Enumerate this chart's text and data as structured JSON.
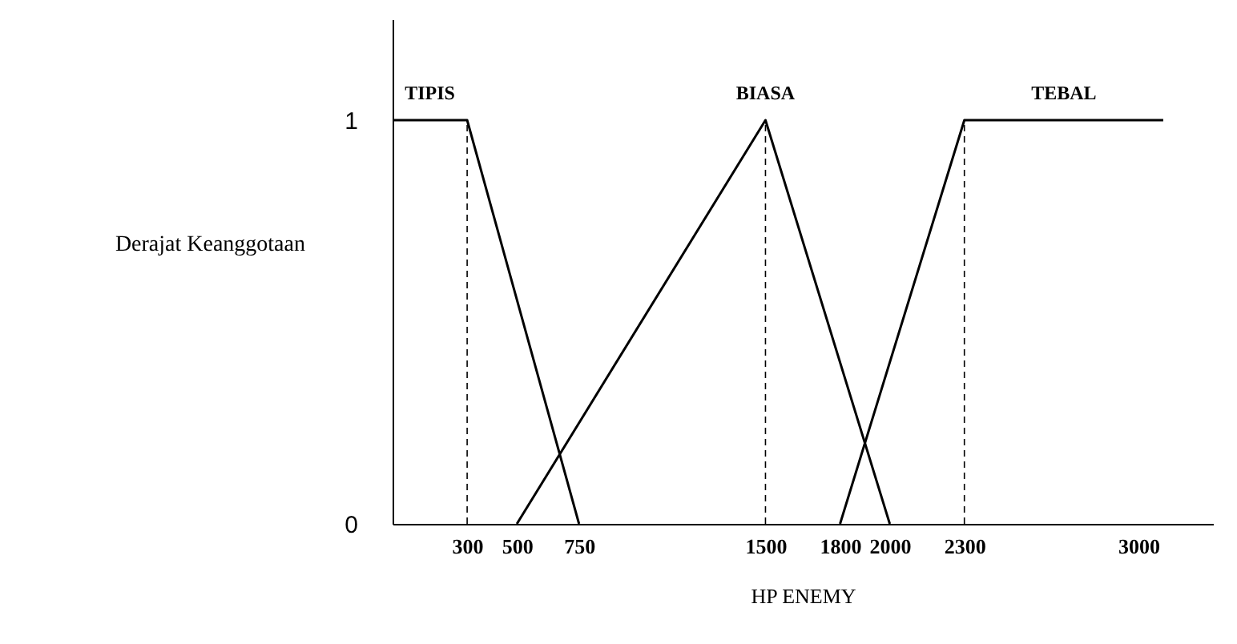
{
  "chart_data": {
    "type": "line",
    "xlabel": "HP ENEMY",
    "ylabel": "Derajat Keanggotaan",
    "xlim": [
      0,
      3300
    ],
    "xticks": [
      300,
      500,
      750,
      1500,
      1800,
      2000,
      2300,
      3000
    ],
    "ylim": [
      0,
      1.25
    ],
    "yticks": [
      0,
      1
    ],
    "grid": false,
    "marker": "none",
    "line_style": "solid",
    "series": [
      {
        "name": "TIPIS",
        "color": "#000000",
        "x": [
          0,
          300,
          750
        ],
        "values": [
          1,
          1,
          0
        ]
      },
      {
        "name": "BIASA",
        "color": "#000000",
        "x": [
          500,
          1500,
          2000
        ],
        "values": [
          0,
          1,
          0
        ]
      },
      {
        "name": "TEBAL",
        "color": "#000000",
        "x": [
          1800,
          2300,
          3100
        ],
        "values": [
          0,
          1,
          1
        ]
      }
    ],
    "ref_lines": [
      {
        "axis": "x",
        "value": 300,
        "line_style": "dashed",
        "color": "#000000"
      },
      {
        "axis": "x",
        "value": 1500,
        "line_style": "dashed",
        "color": "#000000"
      },
      {
        "axis": "x",
        "value": 2300,
        "line_style": "dashed",
        "color": "#000000"
      }
    ]
  }
}
